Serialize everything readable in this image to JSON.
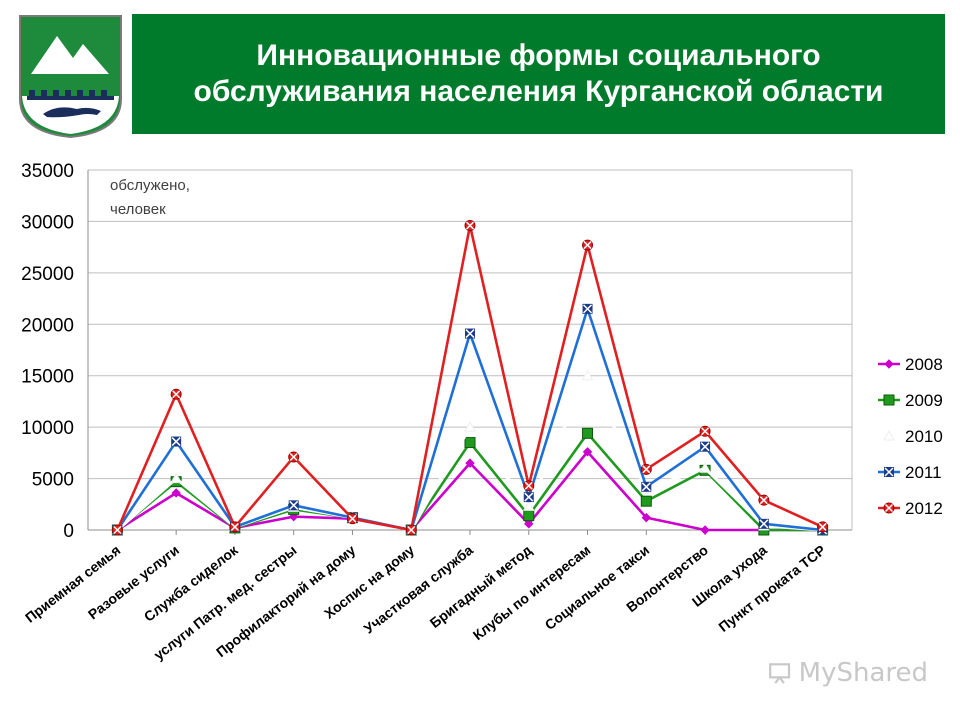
{
  "header": {
    "title_line1": "Инновационные формы социального",
    "title_line2": "обслуживания населения Курганской области",
    "banner_color": "#007b2c",
    "emblem_icon": "kurgan-region-coat-of-arms"
  },
  "watermark": {
    "text": "MyShared",
    "icon": "presentation-icon"
  },
  "chart_data": {
    "type": "line",
    "note_line1": "обслужено,",
    "note_line2": "человек",
    "ylim": [
      0,
      35000
    ],
    "yticks": [
      0,
      5000,
      10000,
      15000,
      20000,
      25000,
      30000,
      35000
    ],
    "grid": true,
    "legend_position": "right",
    "categories": [
      "Приемная семья",
      "Разовые услуги",
      "Служба сиделок",
      "услуги Патр. мед. сестры",
      "Профилакторий на дому",
      "Хоспис на дому",
      "Участковая служба",
      "Бригадный метод",
      "Клубы по интересам",
      "Социальное такси",
      "Волонтерство",
      "Школа ухода",
      "Пункт проката ТСР"
    ],
    "series": [
      {
        "name": "2008",
        "color": "#cc00cc",
        "marker": "diamond",
        "values": [
          0,
          3600,
          200,
          1300,
          1100,
          0,
          6500,
          600,
          7600,
          1200,
          0,
          0,
          0
        ]
      },
      {
        "name": "2009",
        "color": "#1f9a1f",
        "marker": "square",
        "values": [
          0,
          4700,
          200,
          2000,
          1200,
          0,
          8500,
          1400,
          9400,
          2800,
          5800,
          0,
          0
        ]
      },
      {
        "name": "2010",
        "color": "#ffffff",
        "marker": "triangle",
        "values": [
          0,
          5000,
          300,
          2200,
          1200,
          0,
          10000,
          2300,
          15000,
          4000,
          6000,
          400,
          0
        ]
      },
      {
        "name": "2011",
        "color": "#1f6fd6",
        "marker": "x",
        "values": [
          0,
          8600,
          300,
          2400,
          1200,
          0,
          19100,
          3200,
          21500,
          4200,
          8100,
          600,
          0
        ]
      },
      {
        "name": "2012",
        "color": "#e02020",
        "marker": "star",
        "values": [
          0,
          13200,
          300,
          7100,
          1100,
          0,
          29600,
          4300,
          27700,
          5900,
          9600,
          2900,
          300
        ]
      }
    ]
  }
}
